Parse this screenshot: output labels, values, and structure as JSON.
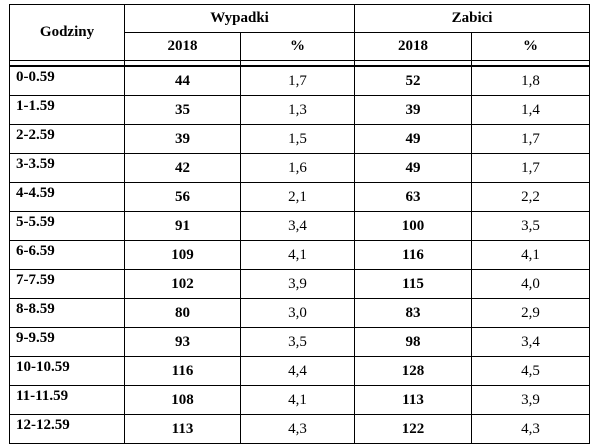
{
  "table": {
    "header": {
      "hours_label": "Godziny",
      "group_accidents": "Wypadki",
      "group_killed": "Zabici",
      "sub_year_1": "2018",
      "sub_pct_1": "%",
      "sub_year_2": "2018",
      "sub_pct_2": "%"
    },
    "rows": [
      {
        "hour": "0-0.59",
        "acc": "44",
        "acc_pct": "1,7",
        "kill": "52",
        "kill_pct": "1,8"
      },
      {
        "hour": "1-1.59",
        "acc": "35",
        "acc_pct": "1,3",
        "kill": "39",
        "kill_pct": "1,4"
      },
      {
        "hour": "2-2.59",
        "acc": "39",
        "acc_pct": "1,5",
        "kill": "49",
        "kill_pct": "1,7"
      },
      {
        "hour": "3-3.59",
        "acc": "42",
        "acc_pct": "1,6",
        "kill": "49",
        "kill_pct": "1,7"
      },
      {
        "hour": "4-4.59",
        "acc": "56",
        "acc_pct": "2,1",
        "kill": "63",
        "kill_pct": "2,2"
      },
      {
        "hour": "5-5.59",
        "acc": "91",
        "acc_pct": "3,4",
        "kill": "100",
        "kill_pct": "3,5"
      },
      {
        "hour": "6-6.59",
        "acc": "109",
        "acc_pct": "4,1",
        "kill": "116",
        "kill_pct": "4,1"
      },
      {
        "hour": "7-7.59",
        "acc": "102",
        "acc_pct": "3,9",
        "kill": "115",
        "kill_pct": "4,0"
      },
      {
        "hour": "8-8.59",
        "acc": "80",
        "acc_pct": "3,0",
        "kill": "83",
        "kill_pct": "2,9"
      },
      {
        "hour": "9-9.59",
        "acc": "93",
        "acc_pct": "3,5",
        "kill": "98",
        "kill_pct": "3,4"
      },
      {
        "hour": "10-10.59",
        "acc": "116",
        "acc_pct": "4,4",
        "kill": "128",
        "kill_pct": "4,5"
      },
      {
        "hour": "11-11.59",
        "acc": "108",
        "acc_pct": "4,1",
        "kill": "113",
        "kill_pct": "3,9"
      },
      {
        "hour": "12-12.59",
        "acc": "113",
        "acc_pct": "4,3",
        "kill": "122",
        "kill_pct": "4,3"
      }
    ]
  }
}
